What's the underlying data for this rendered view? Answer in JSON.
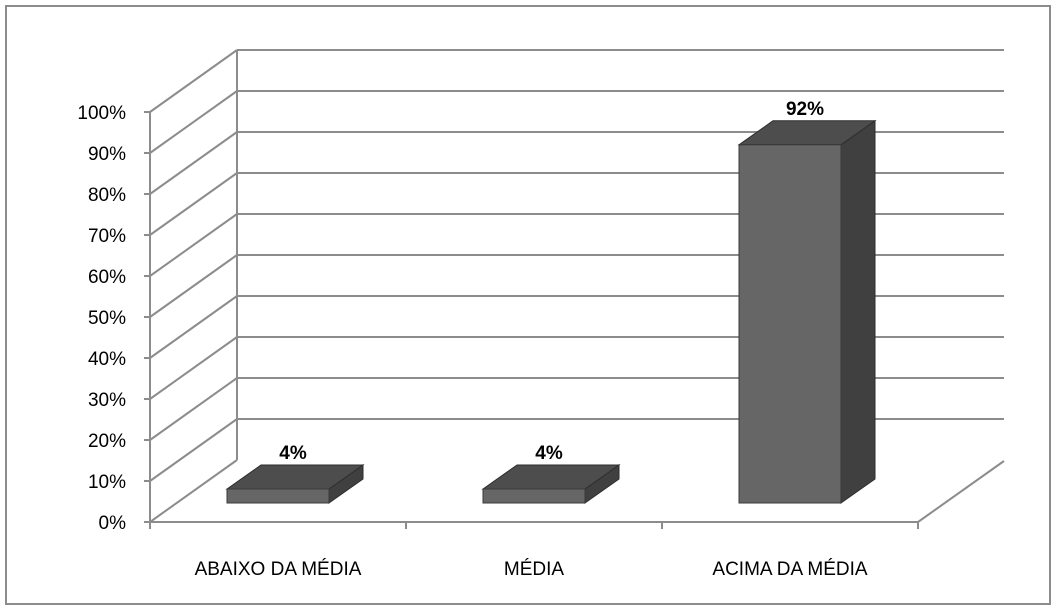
{
  "chart_data": {
    "type": "bar",
    "style": "3d-column",
    "categories": [
      "ABAIXO DA MÉDIA",
      "MÉDIA",
      "ACIMA DA MÉDIA"
    ],
    "values": [
      4,
      4,
      92
    ],
    "data_labels": [
      "4%",
      "4%",
      "92%"
    ],
    "yticks": [
      "0%",
      "10%",
      "20%",
      "30%",
      "40%",
      "50%",
      "60%",
      "70%",
      "80%",
      "90%",
      "100%"
    ],
    "ylim": [
      0,
      100
    ],
    "grid": true,
    "legend": "none",
    "colors": {
      "bar_front": "#666666",
      "bar_top": "#4d4d4d",
      "bar_side": "#404040",
      "grid": "#8c8c8c",
      "frame": "#8c8c8c"
    }
  }
}
